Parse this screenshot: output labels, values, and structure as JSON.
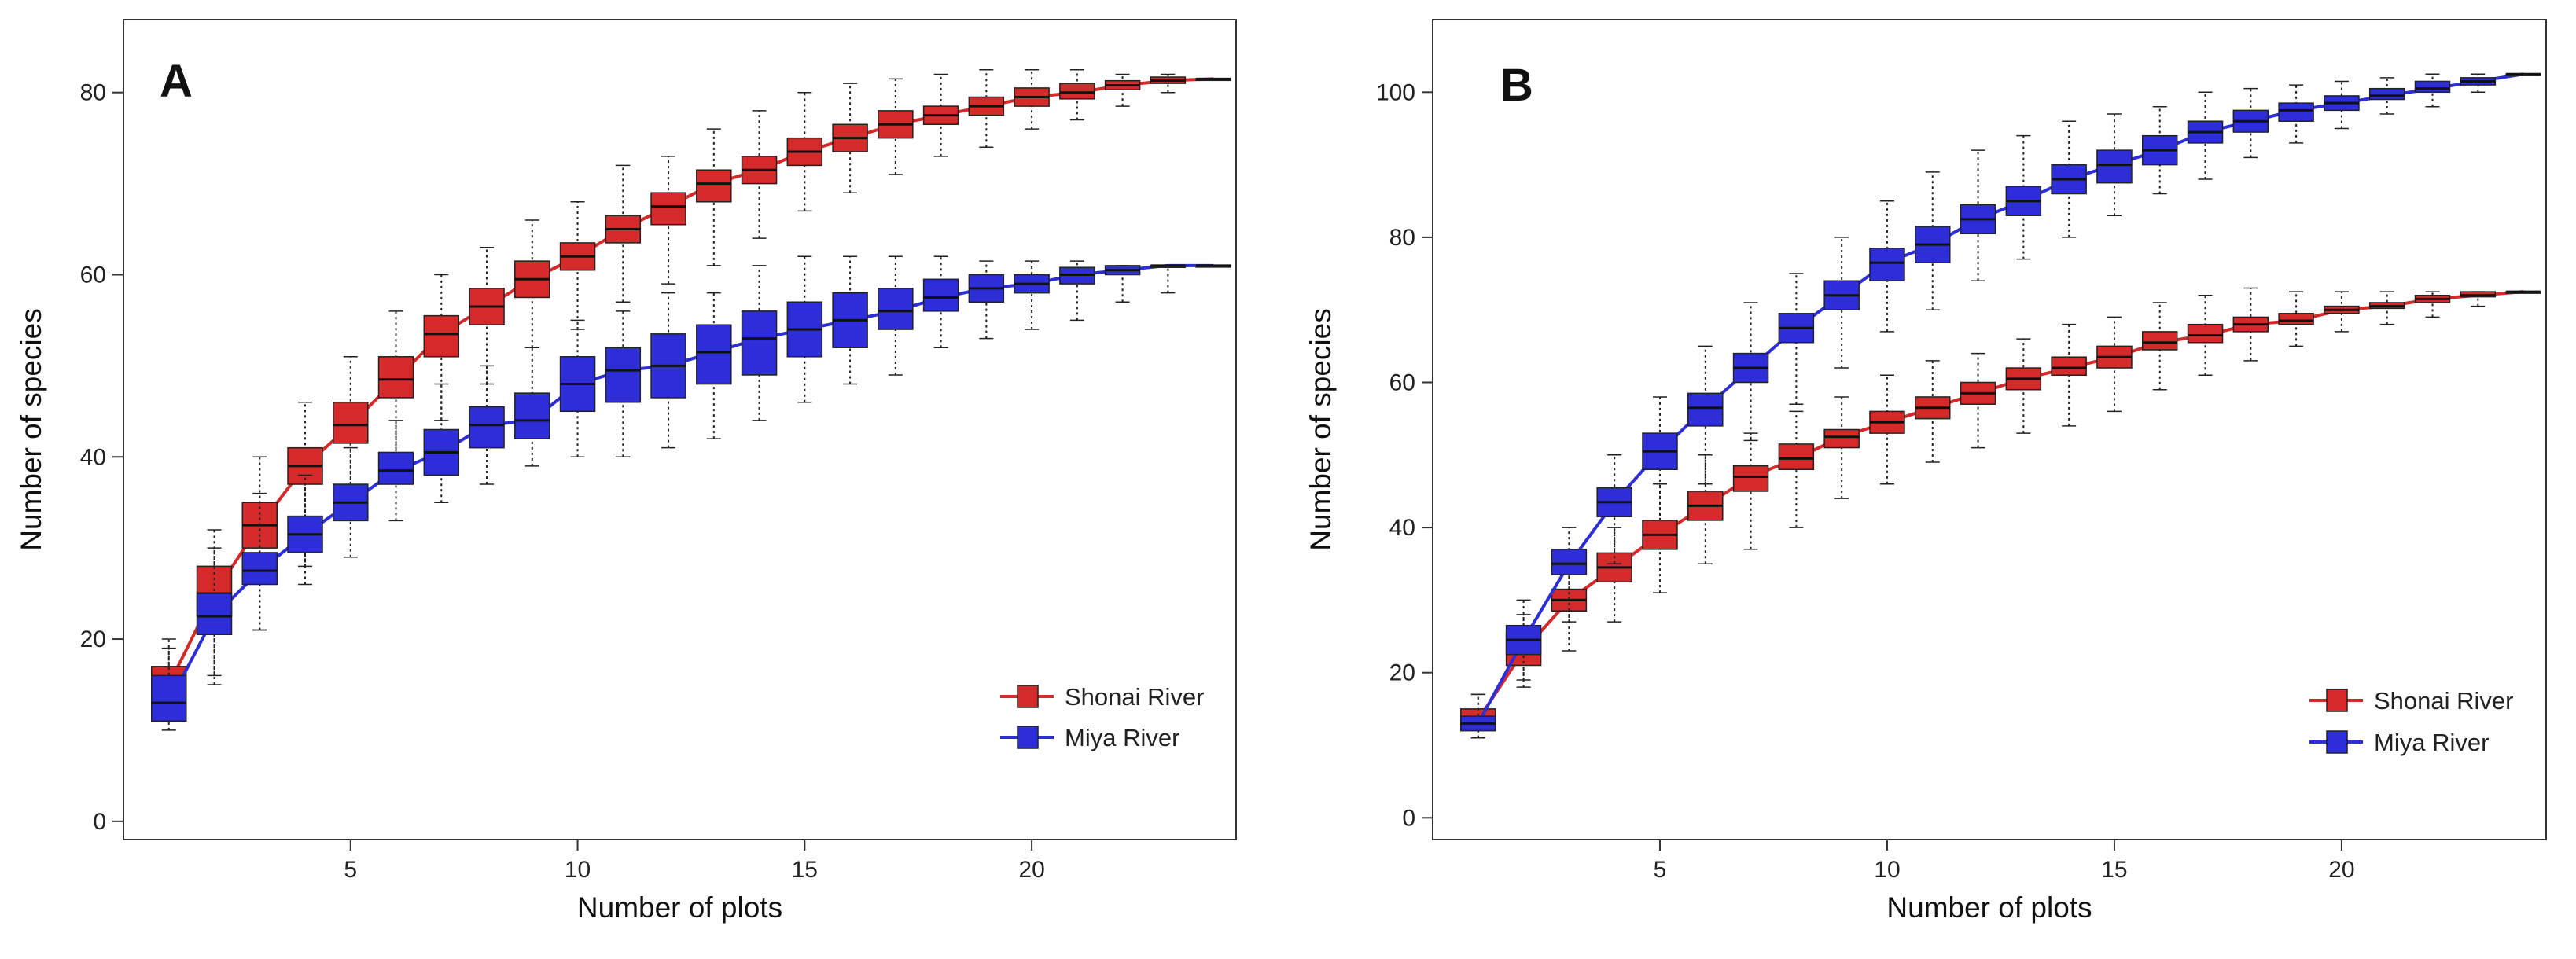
{
  "chart_data": [
    {
      "type": "box",
      "panel_label": "A",
      "xlabel": "Number of plots",
      "ylabel": "Number of species",
      "xlim": [
        0,
        24.5
      ],
      "ylim": [
        -2,
        88
      ],
      "x_ticks": [
        5,
        10,
        15,
        20
      ],
      "y_ticks": [
        0,
        20,
        40,
        60,
        80
      ],
      "legend_position": "bottom-right",
      "series": [
        {
          "name": "Shonai River",
          "color": "#d42a2a",
          "x": [
            1,
            2,
            3,
            4,
            5,
            6,
            7,
            8,
            9,
            10,
            11,
            12,
            13,
            14,
            15,
            16,
            17,
            18,
            19,
            20,
            21,
            22,
            23,
            24
          ],
          "median": [
            15,
            25,
            32.5,
            39,
            43.5,
            48.5,
            53.5,
            56.5,
            59.5,
            62,
            65,
            67.5,
            70,
            71.5,
            73.5,
            75,
            76.5,
            77.5,
            78.5,
            79.5,
            80,
            80.8,
            81.3,
            81.5
          ],
          "q1": [
            13,
            22.5,
            30,
            37,
            41.5,
            46.5,
            51,
            54.5,
            57.5,
            60.5,
            63.5,
            65.5,
            68,
            70,
            72,
            73.5,
            75,
            76.5,
            77.5,
            78.5,
            79.3,
            80.3,
            81,
            81.5
          ],
          "q3": [
            17,
            28,
            35,
            41,
            46,
            51,
            55.5,
            58.5,
            61.5,
            63.5,
            66.5,
            69,
            71.5,
            73,
            75,
            76.5,
            78,
            78.5,
            79.5,
            80.5,
            81,
            81.3,
            81.7,
            81.5
          ],
          "whisker_low": [
            11,
            16,
            21,
            28,
            34,
            40,
            44,
            48,
            52,
            54,
            57,
            59,
            61,
            64,
            67,
            69,
            71,
            73,
            74,
            76,
            77,
            78.5,
            80,
            81.5
          ],
          "whisker_high": [
            19,
            32,
            40,
            46,
            51,
            56,
            60,
            63,
            66,
            68,
            72,
            73,
            76,
            78,
            80,
            81,
            81.5,
            82,
            82.5,
            82.5,
            82.5,
            82,
            82,
            81.5
          ]
        },
        {
          "name": "Miya River",
          "color": "#2d2ed8",
          "x": [
            1,
            2,
            3,
            4,
            5,
            6,
            7,
            8,
            9,
            10,
            11,
            12,
            13,
            14,
            15,
            16,
            17,
            18,
            19,
            20,
            21,
            22,
            23,
            24
          ],
          "median": [
            13,
            22.5,
            27.5,
            31.5,
            35,
            38.5,
            40.5,
            43.5,
            44,
            48,
            49.5,
            50,
            51.5,
            53,
            54,
            55,
            56,
            57.5,
            58.5,
            59,
            60,
            60.5,
            61,
            61
          ],
          "q1": [
            11,
            20.5,
            26,
            29.5,
            33,
            37,
            38,
            41,
            42,
            45,
            46,
            46.5,
            48,
            49,
            51,
            52,
            54,
            56,
            57,
            58,
            59,
            60,
            60.8,
            61
          ],
          "q3": [
            16,
            25,
            29.5,
            33.5,
            37,
            40.5,
            43,
            45.5,
            47,
            51,
            52,
            53.5,
            54.5,
            56,
            57,
            58,
            58.5,
            59.5,
            60,
            60,
            60.8,
            61,
            61,
            61
          ],
          "whisker_low": [
            10,
            15,
            21,
            26,
            29,
            33,
            35,
            37,
            39,
            40,
            40,
            41,
            42,
            44,
            46,
            48,
            49,
            52,
            53,
            54,
            55,
            57,
            58,
            61
          ],
          "whisker_high": [
            20,
            30,
            36,
            38,
            41,
            44,
            48,
            50,
            52,
            55,
            56,
            58,
            58,
            61,
            62,
            62,
            62,
            62,
            61.5,
            61.5,
            61.5,
            61,
            61,
            61
          ]
        }
      ]
    },
    {
      "type": "box",
      "panel_label": "B",
      "xlabel": "Number of plots",
      "ylabel": "Number of species",
      "xlim": [
        0,
        24.5
      ],
      "ylim": [
        -3,
        110
      ],
      "x_ticks": [
        5,
        10,
        15,
        20
      ],
      "y_ticks": [
        0,
        20,
        40,
        60,
        80,
        100
      ],
      "legend_position": "bottom-right",
      "series": [
        {
          "name": "Shonai River",
          "color": "#d42a2a",
          "x": [
            1,
            2,
            3,
            4,
            5,
            6,
            7,
            8,
            9,
            10,
            11,
            12,
            13,
            14,
            15,
            16,
            17,
            18,
            19,
            20,
            21,
            22,
            23,
            24
          ],
          "median": [
            13.5,
            23,
            30,
            34.5,
            39,
            43,
            47,
            49.5,
            52.5,
            54.5,
            56.5,
            58.5,
            60.5,
            62,
            63.5,
            65.5,
            66.5,
            68,
            68.5,
            70,
            70.5,
            71.5,
            72,
            72.5
          ],
          "q1": [
            12,
            21,
            28.5,
            32.5,
            37,
            41,
            45,
            48,
            51,
            53,
            55,
            57,
            59,
            61,
            62,
            64.5,
            65.5,
            67,
            68,
            69.5,
            70.2,
            71,
            71.8,
            72.5
          ],
          "q3": [
            15,
            25.5,
            31.5,
            36.5,
            41,
            45,
            48.5,
            51.5,
            53.5,
            56,
            58,
            60,
            62,
            63.5,
            65,
            67,
            68,
            69,
            69.5,
            70.5,
            71,
            72,
            72.5,
            72.5
          ],
          "whisker_low": [
            11,
            18,
            23,
            27,
            31,
            35,
            37,
            40,
            44,
            46,
            49,
            51,
            53,
            54,
            56,
            59,
            61,
            63,
            65,
            67,
            68,
            69,
            70.5,
            72.5
          ],
          "whisker_high": [
            17,
            28,
            35,
            40,
            46,
            50,
            53,
            56,
            58,
            61,
            63,
            64,
            66,
            68,
            69,
            71,
            72,
            73,
            72.5,
            72.5,
            72.5,
            72.5,
            72.5,
            72.5
          ]
        },
        {
          "name": "Miya River",
          "color": "#2d2ed8",
          "x": [
            1,
            2,
            3,
            4,
            5,
            6,
            7,
            8,
            9,
            10,
            11,
            12,
            13,
            14,
            15,
            16,
            17,
            18,
            19,
            20,
            21,
            22,
            23,
            24
          ],
          "median": [
            13,
            24.5,
            35,
            43.5,
            50.5,
            56.5,
            62,
            67.5,
            72,
            76.5,
            79,
            82.5,
            85,
            88,
            90,
            92,
            94.5,
            96,
            97.5,
            98.5,
            99.5,
            100.5,
            101.5,
            102.5
          ],
          "q1": [
            12,
            22.5,
            33.5,
            41.5,
            48,
            54,
            60,
            65.5,
            70,
            74,
            76.5,
            80.5,
            83,
            86,
            87.5,
            90,
            93,
            94.5,
            96,
            97.5,
            99,
            100,
            101,
            102.5
          ],
          "q3": [
            14,
            26.5,
            37,
            45.5,
            53,
            58.5,
            64,
            69.5,
            74,
            78.5,
            81.5,
            84.5,
            87,
            90,
            92,
            94,
            96,
            97.5,
            98.5,
            99.5,
            100.5,
            101.5,
            102,
            102.5
          ],
          "whisker_low": [
            11,
            19,
            27,
            35,
            41,
            46,
            52,
            57,
            62,
            67,
            70,
            74,
            77,
            80,
            83,
            86,
            88,
            91,
            93,
            95,
            97,
            98,
            100,
            102.5
          ],
          "whisker_high": [
            17,
            30,
            40,
            50,
            58,
            65,
            71,
            75,
            80,
            85,
            89,
            92,
            94,
            96,
            97,
            98,
            100,
            100.5,
            101,
            101.5,
            102,
            102.5,
            102.5,
            102.5
          ]
        }
      ]
    }
  ]
}
